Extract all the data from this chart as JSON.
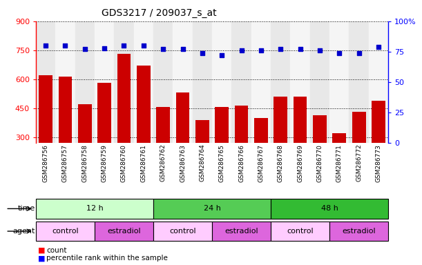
{
  "title": "GDS3217 / 209037_s_at",
  "samples": [
    "GSM286756",
    "GSM286757",
    "GSM286758",
    "GSM286759",
    "GSM286760",
    "GSM286761",
    "GSM286762",
    "GSM286763",
    "GSM286764",
    "GSM286765",
    "GSM286766",
    "GSM286767",
    "GSM286768",
    "GSM286769",
    "GSM286770",
    "GSM286771",
    "GSM286772",
    "GSM286773"
  ],
  "counts": [
    620,
    615,
    470,
    580,
    730,
    670,
    455,
    530,
    390,
    455,
    465,
    400,
    510,
    510,
    415,
    320,
    430,
    490
  ],
  "percentiles": [
    80,
    80,
    77,
    78,
    80,
    80,
    77,
    77,
    74,
    72,
    76,
    76,
    77,
    77,
    76,
    74,
    74,
    79
  ],
  "ylim_left": [
    270,
    900
  ],
  "ylim_right": [
    0,
    100
  ],
  "yticks_left": [
    300,
    450,
    600,
    750,
    900
  ],
  "yticks_right": [
    0,
    25,
    50,
    75,
    100
  ],
  "bar_color": "#cc0000",
  "dot_color": "#0000cc",
  "bg_color_odd": "#e8e8e8",
  "bg_color_even": "#f5f5f5",
  "time_groups": [
    {
      "label": "12 h",
      "start": 0,
      "end": 6,
      "color": "#ccffcc"
    },
    {
      "label": "24 h",
      "start": 6,
      "end": 12,
      "color": "#55cc55"
    },
    {
      "label": "48 h",
      "start": 12,
      "end": 18,
      "color": "#33bb33"
    }
  ],
  "agent_groups": [
    {
      "label": "control",
      "start": 0,
      "end": 3,
      "color": "#ffccff"
    },
    {
      "label": "estradiol",
      "start": 3,
      "end": 6,
      "color": "#dd66dd"
    },
    {
      "label": "control",
      "start": 6,
      "end": 9,
      "color": "#ffccff"
    },
    {
      "label": "estradiol",
      "start": 9,
      "end": 12,
      "color": "#dd66dd"
    },
    {
      "label": "control",
      "start": 12,
      "end": 15,
      "color": "#ffccff"
    },
    {
      "label": "estradiol",
      "start": 15,
      "end": 18,
      "color": "#dd66dd"
    }
  ],
  "xlabel_fontsize": 6.5,
  "title_fontsize": 10,
  "tick_fontsize": 8,
  "label_fontsize": 8,
  "legend_fontsize": 7.5
}
